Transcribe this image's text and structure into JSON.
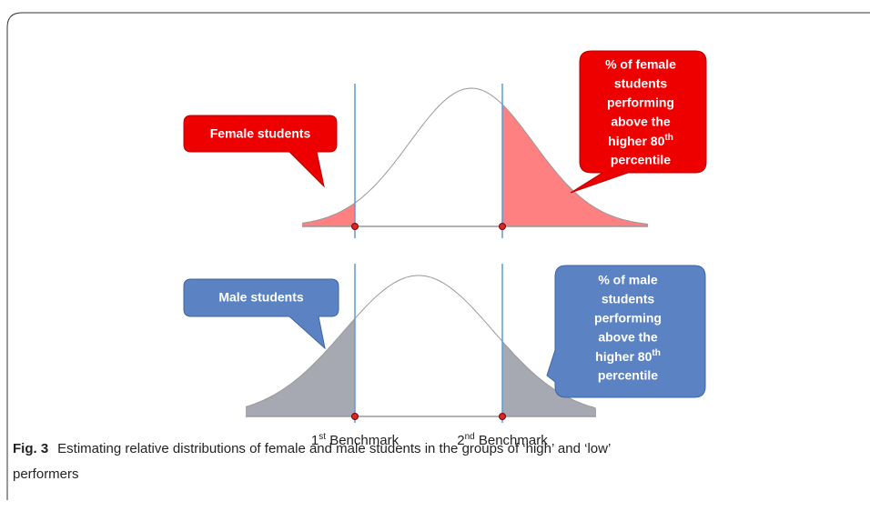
{
  "callouts": {
    "female_label": "Female students",
    "female_note": [
      "% of female",
      "students",
      "performing",
      "above the",
      [
        "higher 80",
        "th"
      ],
      "percentile"
    ],
    "male_label": "Male students",
    "male_note": [
      "% of male",
      "students",
      "performing",
      "above the",
      [
        "higher 80",
        "th"
      ],
      "percentile"
    ]
  },
  "benchmarks": [
    [
      "1",
      "st",
      " Benchmark"
    ],
    [
      "2",
      "nd",
      " Benchmark"
    ]
  ],
  "caption": {
    "label": "Fig. 3",
    "text": "Estimating relative distributions of female and male students in the groups of ‘high’ and ‘low’",
    "text_cont": "performers"
  }
}
